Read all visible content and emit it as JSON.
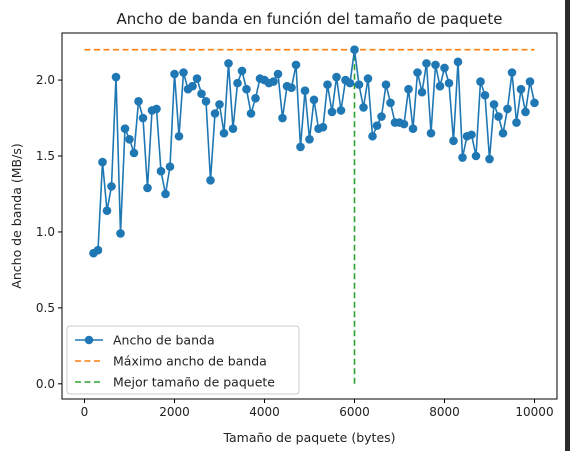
{
  "chart_data": {
    "type": "line",
    "title": "Ancho de banda en función del tamaño de paquete",
    "xlabel": "Tamaño de paquete (bytes)",
    "ylabel": "Ancho de banda (MB/s)",
    "xlim": [
      -500,
      10500
    ],
    "ylim": [
      -0.1,
      2.31
    ],
    "xticks": [
      0,
      2000,
      4000,
      6000,
      8000,
      10000
    ],
    "yticks": [
      0.0,
      0.5,
      1.0,
      1.5,
      2.0
    ],
    "xtick_labels": [
      "0",
      "2000",
      "4000",
      "6000",
      "8000",
      "10000"
    ],
    "ytick_labels": [
      "0.0",
      "0.5",
      "1.0",
      "1.5",
      "2.0"
    ],
    "grid": false,
    "legend_position": "lower-left",
    "series": [
      {
        "name": "Ancho de banda",
        "color": "#1f77b4",
        "style": "line-marker",
        "x": [
          200,
          300,
          400,
          500,
          600,
          700,
          800,
          900,
          1000,
          1100,
          1200,
          1300,
          1400,
          1500,
          1600,
          1700,
          1800,
          1900,
          2000,
          2100,
          2200,
          2300,
          2400,
          2500,
          2600,
          2700,
          2800,
          2900,
          3000,
          3100,
          3200,
          3300,
          3400,
          3500,
          3600,
          3700,
          3800,
          3900,
          4000,
          4100,
          4200,
          4300,
          4400,
          4500,
          4600,
          4700,
          4800,
          4900,
          5000,
          5100,
          5200,
          5300,
          5400,
          5500,
          5600,
          5700,
          5800,
          5900,
          6000,
          6100,
          6200,
          6300,
          6400,
          6500,
          6600,
          6700,
          6800,
          6900,
          7000,
          7100,
          7200,
          7300,
          7400,
          7500,
          7600,
          7700,
          7800,
          7900,
          8000,
          8100,
          8200,
          8300,
          8400,
          8500,
          8600,
          8700,
          8800,
          8900,
          9000,
          9100,
          9200,
          9300,
          9400,
          9500,
          9600,
          9700,
          9800,
          9900,
          10000
        ],
        "y": [
          0.86,
          0.88,
          1.46,
          1.14,
          1.3,
          2.02,
          0.99,
          1.68,
          1.61,
          1.52,
          1.86,
          1.75,
          1.29,
          1.8,
          1.81,
          1.4,
          1.25,
          1.43,
          2.04,
          1.63,
          2.05,
          1.94,
          1.96,
          2.01,
          1.91,
          1.86,
          1.34,
          1.78,
          1.84,
          1.65,
          2.11,
          1.68,
          1.98,
          2.06,
          1.94,
          1.78,
          1.88,
          2.01,
          2.0,
          1.98,
          1.99,
          2.04,
          1.75,
          1.96,
          1.95,
          2.1,
          1.56,
          1.93,
          1.61,
          1.87,
          1.68,
          1.69,
          1.97,
          1.79,
          2.02,
          1.8,
          2.0,
          1.98,
          2.2,
          1.97,
          1.82,
          2.01,
          1.63,
          1.7,
          1.76,
          1.97,
          1.85,
          1.72,
          1.72,
          1.71,
          1.94,
          1.68,
          2.05,
          1.92,
          2.11,
          1.65,
          2.1,
          1.96,
          2.08,
          1.98,
          1.6,
          2.12,
          1.49,
          1.63,
          1.64,
          1.5,
          1.99,
          1.9,
          1.48,
          1.84,
          1.76,
          1.65,
          1.81,
          2.05,
          1.72,
          1.94,
          1.79,
          1.99,
          1.85
        ]
      },
      {
        "name": "Máximo ancho de banda",
        "color": "#ff7f0e",
        "style": "dashed",
        "x": [
          0,
          10000
        ],
        "y": [
          2.2,
          2.2
        ]
      },
      {
        "name": "Mejor tamaño de paquete",
        "color": "#2ca02c",
        "style": "dashed",
        "x": [
          6000,
          6000
        ],
        "y": [
          0.0,
          2.2
        ]
      }
    ]
  }
}
